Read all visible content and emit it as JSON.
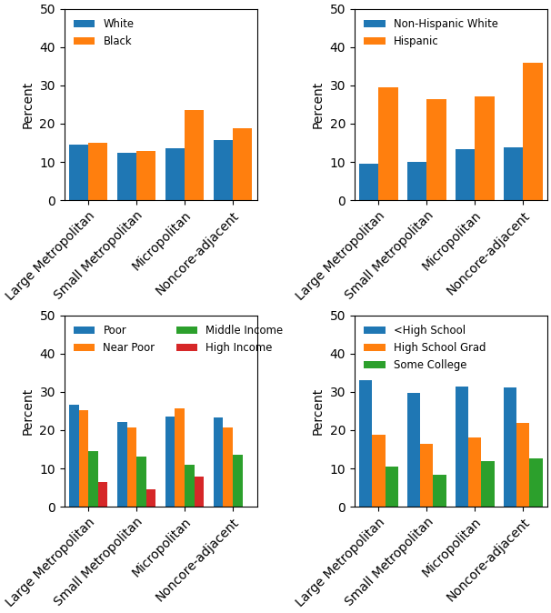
{
  "chart_data": [
    {
      "type": "bar",
      "categories": [
        "Large Metropolitan",
        "Small Metropolitan",
        "Micropolitan",
        "Noncore-adjacent"
      ],
      "series": [
        {
          "name": "White",
          "values": [
            14.6,
            12.3,
            13.6,
            15.6
          ]
        },
        {
          "name": "Black",
          "values": [
            15.0,
            12.8,
            23.6,
            18.8
          ]
        }
      ],
      "ylabel": "Percent",
      "ylim": [
        0,
        50
      ],
      "yticks": [
        0,
        10,
        20,
        30,
        40,
        50
      ],
      "grid": false,
      "legend": "upper left"
    },
    {
      "type": "bar",
      "categories": [
        "Large Metropolitan",
        "Small Metropolitan",
        "Micropolitan",
        "Noncore-adjacent"
      ],
      "series": [
        {
          "name": "Non-Hispanic White",
          "values": [
            9.6,
            10.0,
            13.3,
            13.7
          ]
        },
        {
          "name": "Hispanic",
          "values": [
            29.5,
            26.3,
            27.1,
            36.0
          ]
        }
      ],
      "ylabel": "Percent",
      "ylim": [
        0,
        50
      ],
      "yticks": [
        0,
        10,
        20,
        30,
        40,
        50
      ],
      "grid": false,
      "legend": "upper left"
    },
    {
      "type": "bar",
      "categories": [
        "Large Metropolitan",
        "Small Metropolitan",
        "Micropolitan",
        "Noncore-adjacent"
      ],
      "series": [
        {
          "name": "Poor",
          "values": [
            26.7,
            22.2,
            23.5,
            23.2
          ]
        },
        {
          "name": "Near Poor",
          "values": [
            25.2,
            20.8,
            25.6,
            20.6
          ]
        },
        {
          "name": "Middle Income",
          "values": [
            14.6,
            13.1,
            11.0,
            13.5
          ]
        },
        {
          "name": "High Income",
          "values": [
            6.5,
            4.6,
            7.9,
            null
          ]
        }
      ],
      "ylabel": "Percent",
      "ylim": [
        0,
        50
      ],
      "yticks": [
        0,
        10,
        20,
        30,
        40,
        50
      ],
      "grid": false,
      "legend": "upper left"
    },
    {
      "type": "bar",
      "categories": [
        "Large Metropolitan",
        "Small Metropolitan",
        "Micropolitan",
        "Noncore-adjacent"
      ],
      "series": [
        {
          "name": "<High School",
          "values": [
            33.1,
            29.7,
            31.3,
            31.2
          ]
        },
        {
          "name": "High School Grad",
          "values": [
            18.7,
            16.4,
            18.1,
            22.0
          ]
        },
        {
          "name": "Some College",
          "values": [
            10.6,
            8.4,
            12.0,
            12.7
          ]
        }
      ],
      "ylabel": "Percent",
      "ylim": [
        0,
        50
      ],
      "yticks": [
        0,
        10,
        20,
        30,
        40,
        50
      ],
      "grid": false,
      "legend": "upper left"
    }
  ]
}
